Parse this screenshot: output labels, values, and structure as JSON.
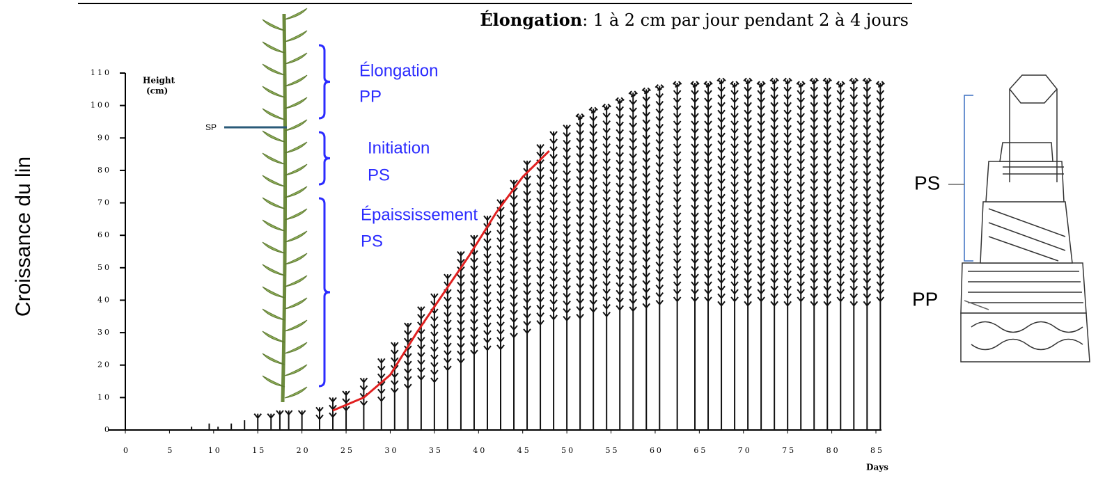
{
  "chart_data": {
    "type": "line",
    "title_bold": "Élongation",
    "title_rest": ": 1 à 2 cm par jour pendant 2 à 4 jours",
    "side_label": "Croissance du lin",
    "y_label_lines": [
      "Height",
      "(cm)"
    ],
    "x_label": "Days",
    "xlim": [
      0,
      85
    ],
    "xticks": [
      0,
      5,
      10,
      15,
      20,
      25,
      30,
      35,
      40,
      45,
      50,
      55,
      60,
      65,
      70,
      75,
      80,
      85
    ],
    "ylim": [
      0,
      110
    ],
    "yticks": [
      0,
      10,
      20,
      30,
      40,
      50,
      60,
      70,
      80,
      90,
      100,
      110
    ],
    "plants": {
      "color": "#111111",
      "x": [
        7.5,
        9.5,
        10.5,
        12,
        13.5,
        15,
        16.5,
        17.5,
        18.5,
        20,
        22,
        23.5,
        25,
        27,
        29,
        30.5,
        32,
        33.5,
        35,
        36.5,
        38,
        39.5,
        41,
        42.5,
        44,
        45.5,
        47,
        48.5,
        50,
        51.5,
        53,
        54.5,
        56,
        57.5,
        59,
        60.5,
        62.5,
        64.5,
        66,
        67.5,
        69,
        70.5,
        72,
        73.5,
        75,
        76.5,
        78,
        79.5,
        81,
        82.5,
        84,
        85.5
      ],
      "values": [
        1,
        2,
        1,
        2,
        3,
        5,
        5,
        6,
        6,
        6,
        7,
        10,
        12,
        16,
        22,
        27,
        33,
        38,
        42,
        48,
        55,
        60,
        66,
        71,
        77,
        83,
        88,
        92,
        94,
        97,
        99,
        100,
        102,
        104,
        105,
        106,
        107,
        107,
        107,
        108,
        107,
        108,
        107,
        108,
        108,
        107,
        108,
        108,
        107,
        108,
        108,
        107
      ]
    },
    "curve": {
      "color": "#e02020",
      "x": [
        23.5,
        27,
        30,
        33,
        36,
        39,
        42,
        45,
        48
      ],
      "values": [
        6,
        10,
        17,
        30,
        42,
        54,
        67,
        78,
        86
      ]
    },
    "annotations": {
      "sp": "SP",
      "elongation": [
        "Élongation",
        "PP"
      ],
      "initiation": [
        "Initiation",
        "PS"
      ],
      "epaississement": [
        "Épaississement",
        "PS"
      ],
      "annotation_color": "#2b2bff"
    },
    "diagram": {
      "ps": "PS",
      "pp": "PP"
    }
  }
}
